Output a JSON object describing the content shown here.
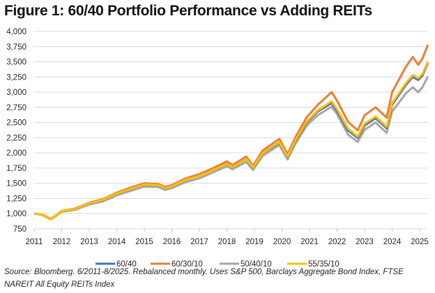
{
  "chart_data": {
    "type": "line",
    "title": "Figure 1: 60/40 Portfolio Performance vs Adding REITs",
    "xlabel": "",
    "ylabel": "",
    "xlim": [
      2011,
      2025.3
    ],
    "ylim": [
      750,
      4000
    ],
    "yticks": [
      750,
      1000,
      1250,
      1500,
      1750,
      2000,
      2250,
      2500,
      2750,
      3000,
      3250,
      3500,
      3750,
      4000
    ],
    "ytick_labels": [
      "750",
      "1,000",
      "1,250",
      "1,500",
      "1,750",
      "2,000",
      "2,250",
      "2,500",
      "2,750",
      "3,000",
      "3,250",
      "3,500",
      "3,750",
      "4,000"
    ],
    "xticks": [
      "2011",
      "2012",
      "2013",
      "2014",
      "2015",
      "2016",
      "2017",
      "2018",
      "2019",
      "2020",
      "2021",
      "2022",
      "2023",
      "2024",
      "2025"
    ],
    "grid": true,
    "legend_position": "bottom",
    "x": [
      2011.0,
      2011.3,
      2011.6,
      2011.8,
      2012.0,
      2012.5,
      2013.0,
      2013.5,
      2014.0,
      2014.5,
      2015.0,
      2015.5,
      2015.75,
      2016.0,
      2016.5,
      2017.0,
      2017.5,
      2018.0,
      2018.2,
      2018.7,
      2018.95,
      2019.3,
      2019.9,
      2020.2,
      2020.5,
      2020.9,
      2021.3,
      2021.8,
      2022.0,
      2022.4,
      2022.75,
      2023.0,
      2023.4,
      2023.8,
      2024.0,
      2024.5,
      2024.75,
      2024.95,
      2025.1,
      2025.3
    ],
    "series": [
      {
        "name": "60/40",
        "color": "#4472C4",
        "values": [
          1000,
          980,
          912,
          970,
          1040,
          1080,
          1170,
          1230,
          1330,
          1410,
          1480,
          1470,
          1420,
          1450,
          1560,
          1620,
          1720,
          1820,
          1770,
          1895,
          1755,
          1995,
          2170,
          1935,
          2210,
          2500,
          2680,
          2820,
          2690,
          2370,
          2245,
          2450,
          2570,
          2405,
          2790,
          3120,
          3250,
          3200,
          3270,
          3480
        ]
      },
      {
        "name": "60/30/10",
        "color": "#ED7D31",
        "values": [
          1000,
          985,
          915,
          975,
          1045,
          1085,
          1180,
          1240,
          1345,
          1430,
          1500,
          1490,
          1440,
          1470,
          1580,
          1650,
          1750,
          1860,
          1800,
          1940,
          1790,
          2040,
          2230,
          1980,
          2270,
          2590,
          2790,
          3000,
          2860,
          2510,
          2370,
          2620,
          2750,
          2580,
          3000,
          3420,
          3580,
          3450,
          3550,
          3780
        ]
      },
      {
        "name": "50/40/10",
        "color": "#A5A5A5",
        "values": [
          1000,
          975,
          905,
          960,
          1030,
          1065,
          1150,
          1200,
          1300,
          1375,
          1445,
          1440,
          1390,
          1420,
          1520,
          1580,
          1680,
          1780,
          1730,
          1850,
          1720,
          1950,
          2130,
          1890,
          2160,
          2450,
          2620,
          2760,
          2640,
          2300,
          2180,
          2380,
          2500,
          2330,
          2680,
          2980,
          3080,
          3000,
          3080,
          3260
        ]
      },
      {
        "name": "55/35/10",
        "color": "#FFC000",
        "values": [
          1000,
          980,
          910,
          970,
          1040,
          1080,
          1170,
          1230,
          1330,
          1410,
          1480,
          1470,
          1420,
          1450,
          1560,
          1620,
          1720,
          1820,
          1770,
          1900,
          1760,
          2000,
          2180,
          1940,
          2220,
          2520,
          2700,
          2850,
          2720,
          2400,
          2270,
          2480,
          2600,
          2430,
          2820,
          3150,
          3280,
          3230,
          3300,
          3500
        ]
      }
    ]
  },
  "source_line1": "Source: Bloomberg.  6/2011-8/2025.  Rebalanced monthly.  Uses S&P 500, Barclays Aggregate Bond Index, FTSE",
  "source_line2": "NAREIT All Equity REITs Index"
}
